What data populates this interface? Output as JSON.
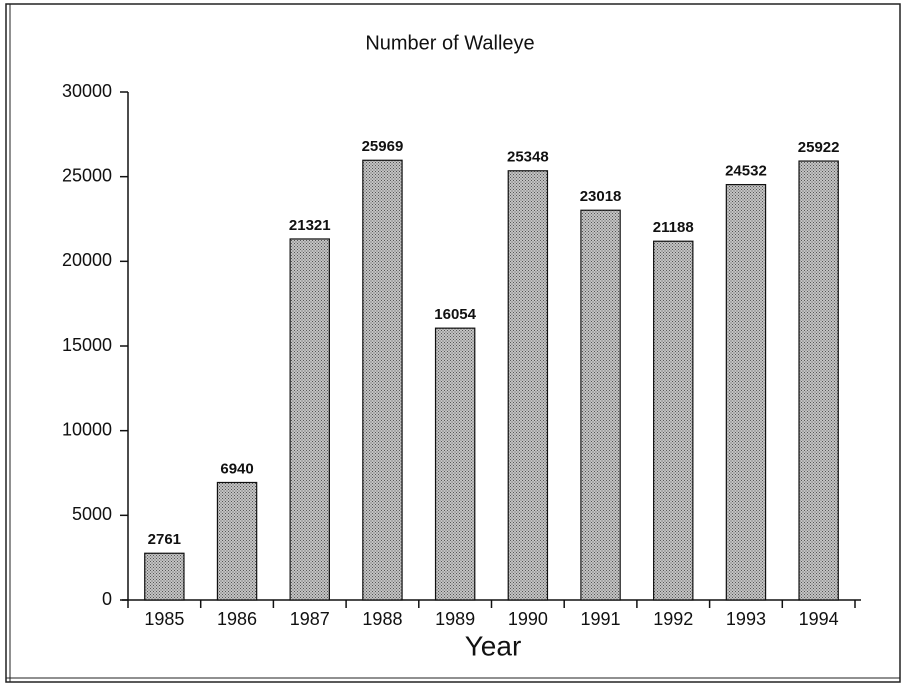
{
  "chart_data": {
    "type": "bar",
    "title": "Number of Walleye",
    "x_label": "Year",
    "categories": [
      "1985",
      "1986",
      "1987",
      "1988",
      "1989",
      "1990",
      "1991",
      "1992",
      "1993",
      "1994"
    ],
    "values": [
      2761,
      6940,
      21321,
      25969,
      16054,
      25348,
      23018,
      21188,
      24532,
      25922
    ],
    "color": "#c4c4c4",
    "ylim": [
      0,
      30000
    ],
    "yticks": [
      0,
      5000,
      10000,
      15000,
      20000,
      25000,
      30000
    ],
    "grid": false
  }
}
